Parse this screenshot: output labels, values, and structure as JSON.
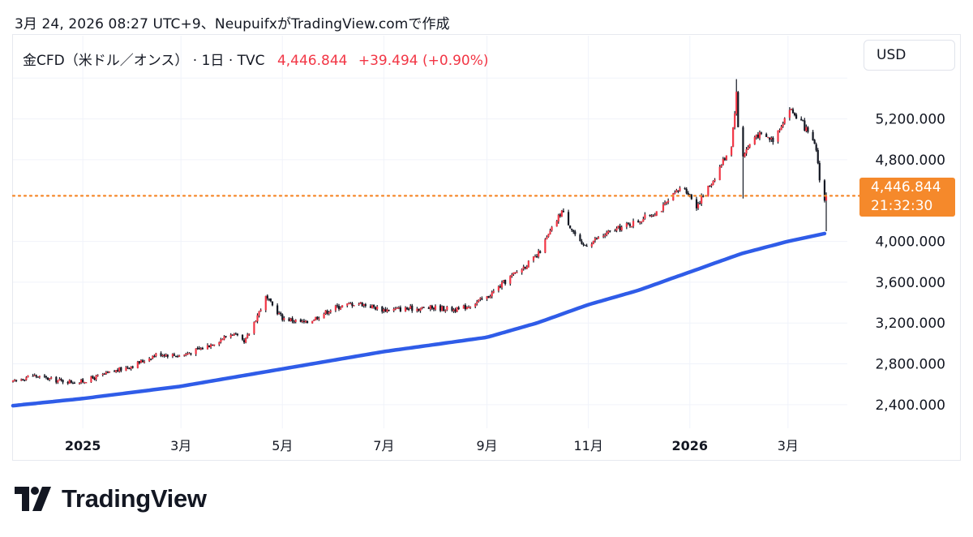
{
  "caption": "3月 24, 2026 08:27 UTC+9、NeupuifxがTradingView.comで作成",
  "legend": {
    "symbol": "金CFD（米ドル／オンス） · 1日 · TVC",
    "price": "4,446.844",
    "change": "+39.494 (+0.90%)"
  },
  "currency_button": "USD",
  "price_tag": {
    "price": "4,446.844",
    "countdown": "21:32:30"
  },
  "brand": {
    "name": "TradingView"
  },
  "colors": {
    "up": "#f23645",
    "down": "#131722",
    "candle_wick": "#131722",
    "ma": "#2f5ce8",
    "priceline": "#f5892b"
  },
  "chart_data": {
    "type": "candlestick",
    "y_axis_labels": [
      "5,200.000",
      "4,800.000",
      "4,000.000",
      "3,600.000",
      "3,200.000",
      "2,800.000",
      "2,400.000"
    ],
    "x_axis_labels": [
      "2025",
      "3月",
      "5月",
      "7月",
      "9月",
      "11月",
      "2026",
      "3月"
    ],
    "ylim": [
      2200,
      5650
    ],
    "last_price": 4446.844,
    "price_path": [
      [
        "2024-11-20",
        2620
      ],
      [
        "2024-12-01",
        2690
      ],
      [
        "2024-12-15",
        2640
      ],
      [
        "2024-12-30",
        2620
      ],
      [
        "2025-01-15",
        2700
      ],
      [
        "2025-02-01",
        2790
      ],
      [
        "2025-02-15",
        2900
      ],
      [
        "2025-03-01",
        2880
      ],
      [
        "2025-03-15",
        2960
      ],
      [
        "2025-04-01",
        3100
      ],
      [
        "2025-04-08",
        3000
      ],
      [
        "2025-04-21",
        3450
      ],
      [
        "2025-05-01",
        3250
      ],
      [
        "2025-05-15",
        3200
      ],
      [
        "2025-06-01",
        3350
      ],
      [
        "2025-06-15",
        3400
      ],
      [
        "2025-07-01",
        3330
      ],
      [
        "2025-07-15",
        3340
      ],
      [
        "2025-08-01",
        3350
      ],
      [
        "2025-08-15",
        3330
      ],
      [
        "2025-09-01",
        3450
      ],
      [
        "2025-09-15",
        3650
      ],
      [
        "2025-10-01",
        3850
      ],
      [
        "2025-10-16",
        4300
      ],
      [
        "2025-10-28",
        3950
      ],
      [
        "2025-11-15",
        4100
      ],
      [
        "2025-12-01",
        4200
      ],
      [
        "2025-12-15",
        4320
      ],
      [
        "2025-12-28",
        4550
      ],
      [
        "2026-01-05",
        4350
      ],
      [
        "2026-01-15",
        4600
      ],
      [
        "2026-01-26",
        4950
      ],
      [
        "2026-01-29",
        5450
      ],
      [
        "2026-01-31",
        4800
      ],
      [
        "2026-02-10",
        5050
      ],
      [
        "2026-02-20",
        5000
      ],
      [
        "2026-03-02",
        5300
      ],
      [
        "2026-03-10",
        5150
      ],
      [
        "2026-03-18",
        4900
      ],
      [
        "2026-03-22",
        4350
      ],
      [
        "2026-03-24",
        4446.844
      ]
    ],
    "moving_average": [
      [
        "2024-11-20",
        2390
      ],
      [
        "2025-01-01",
        2460
      ],
      [
        "2025-03-01",
        2580
      ],
      [
        "2025-05-01",
        2750
      ],
      [
        "2025-07-01",
        2920
      ],
      [
        "2025-09-01",
        3060
      ],
      [
        "2025-10-01",
        3200
      ],
      [
        "2025-11-01",
        3380
      ],
      [
        "2025-12-01",
        3520
      ],
      [
        "2026-01-01",
        3700
      ],
      [
        "2026-02-01",
        3880
      ],
      [
        "2026-03-01",
        4000
      ],
      [
        "2026-03-24",
        4080
      ]
    ]
  }
}
